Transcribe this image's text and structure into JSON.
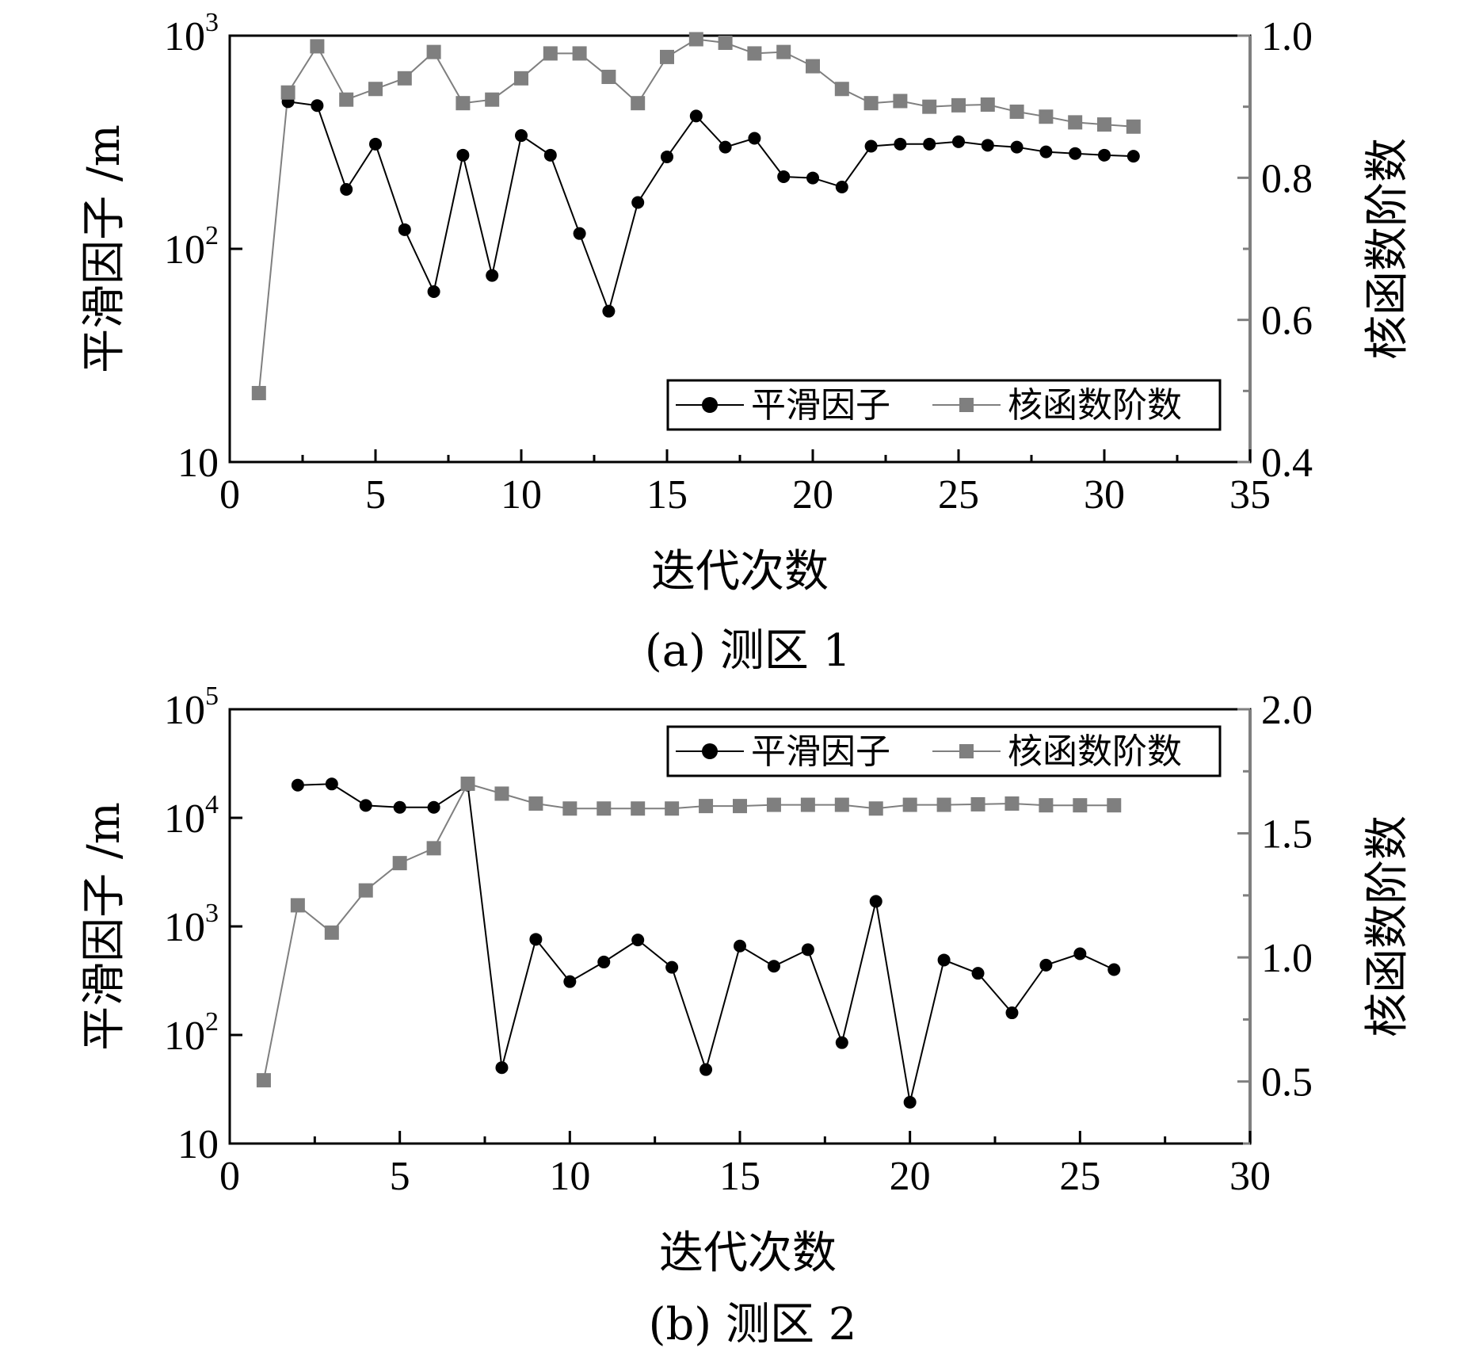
{
  "colors": {
    "series1": "#000000",
    "series2": "#7f7f7f",
    "axis": "#000000",
    "right_axis": "#7f7f7f"
  },
  "chart_data": [
    {
      "type": "line",
      "caption": "(a) 测区 1",
      "xlabel": "迭代次数",
      "ylabel": "平滑因子 /m",
      "ylabel_right": "核函数阶数",
      "xlim": [
        0,
        35
      ],
      "xticks": [
        0,
        5,
        10,
        15,
        20,
        25,
        30,
        35
      ],
      "ylim": [
        10,
        1000
      ],
      "yscale": "log",
      "yticks": [
        {
          "value": 10,
          "base": "10",
          "exp": ""
        },
        {
          "value": 100,
          "base": "10",
          "exp": "2"
        },
        {
          "value": 1000,
          "base": "10",
          "exp": "3"
        }
      ],
      "ylim_right": [
        0.4,
        1.0
      ],
      "yticks_right": [
        0.4,
        0.6,
        0.8,
        1.0
      ],
      "legend_position": "bottom-right",
      "series": [
        {
          "name": "平滑因子",
          "axis": "left",
          "marker": "circle",
          "x": [
            2,
            3,
            4,
            5,
            6,
            7,
            8,
            9,
            10,
            11,
            12,
            13,
            14,
            15,
            16,
            17,
            18,
            19,
            20,
            21,
            22,
            23,
            24,
            25,
            26,
            27,
            28,
            29,
            30,
            31
          ],
          "y": [
            490,
            470,
            190,
            310,
            123,
            63,
            275,
            75,
            340,
            275,
            118,
            51,
            165,
            270,
            420,
            300,
            330,
            218,
            215,
            195,
            303,
            310,
            310,
            318,
            306,
            300,
            285,
            280,
            275,
            272
          ]
        },
        {
          "name": "核函数阶数",
          "axis": "right",
          "marker": "square",
          "x": [
            1,
            2,
            3,
            4,
            5,
            6,
            7,
            8,
            9,
            10,
            11,
            12,
            13,
            14,
            15,
            16,
            17,
            18,
            19,
            20,
            21,
            22,
            23,
            24,
            25,
            26,
            27,
            28,
            29,
            30,
            31
          ],
          "y": [
            0.497,
            0.92,
            0.985,
            0.91,
            0.925,
            0.94,
            0.977,
            0.905,
            0.91,
            0.94,
            0.975,
            0.975,
            0.942,
            0.905,
            0.97,
            0.995,
            0.99,
            0.975,
            0.977,
            0.957,
            0.925,
            0.905,
            0.908,
            0.9,
            0.902,
            0.903,
            0.893,
            0.886,
            0.878,
            0.875,
            0.872
          ]
        }
      ]
    },
    {
      "type": "line",
      "caption": "(b) 测区 2",
      "xlabel": "迭代次数",
      "ylabel": "平滑因子 /m",
      "ylabel_right": "核函数阶数",
      "xlim": [
        0,
        30
      ],
      "xticks": [
        0,
        5,
        10,
        15,
        20,
        25,
        30
      ],
      "ylim": [
        10,
        100000
      ],
      "yscale": "log",
      "yticks": [
        {
          "value": 10,
          "base": "10",
          "exp": ""
        },
        {
          "value": 100,
          "base": "10",
          "exp": "2"
        },
        {
          "value": 1000,
          "base": "10",
          "exp": "3"
        },
        {
          "value": 10000,
          "base": "10",
          "exp": "4"
        },
        {
          "value": 100000,
          "base": "10",
          "exp": "5"
        }
      ],
      "ylim_right": [
        0.25,
        2.0
      ],
      "yticks_right": [
        0.5,
        1.0,
        1.5,
        2.0
      ],
      "legend_position": "top-right",
      "series": [
        {
          "name": "平滑因子",
          "axis": "left",
          "marker": "circle",
          "x": [
            2,
            3,
            4,
            5,
            6,
            7,
            8,
            9,
            10,
            11,
            12,
            13,
            14,
            15,
            16,
            17,
            18,
            19,
            20,
            21,
            22,
            23,
            24,
            25,
            26
          ],
          "y": [
            20000,
            20500,
            13000,
            12500,
            12500,
            20000,
            50,
            760,
            310,
            470,
            750,
            420,
            48,
            660,
            430,
            610,
            85,
            1700,
            24,
            490,
            370,
            160,
            440,
            560,
            400
          ]
        },
        {
          "name": "核函数阶数",
          "axis": "right",
          "marker": "square",
          "x": [
            1,
            2,
            3,
            4,
            5,
            6,
            7,
            8,
            9,
            10,
            11,
            12,
            13,
            14,
            15,
            16,
            17,
            18,
            19,
            20,
            21,
            22,
            23,
            24,
            25,
            26
          ],
          "y": [
            0.505,
            1.21,
            1.1,
            1.27,
            1.38,
            1.44,
            1.7,
            1.66,
            1.62,
            1.6,
            1.6,
            1.6,
            1.6,
            1.61,
            1.61,
            1.615,
            1.615,
            1.615,
            1.6,
            1.615,
            1.615,
            1.617,
            1.62,
            1.613,
            1.613,
            1.613
          ]
        }
      ]
    }
  ]
}
